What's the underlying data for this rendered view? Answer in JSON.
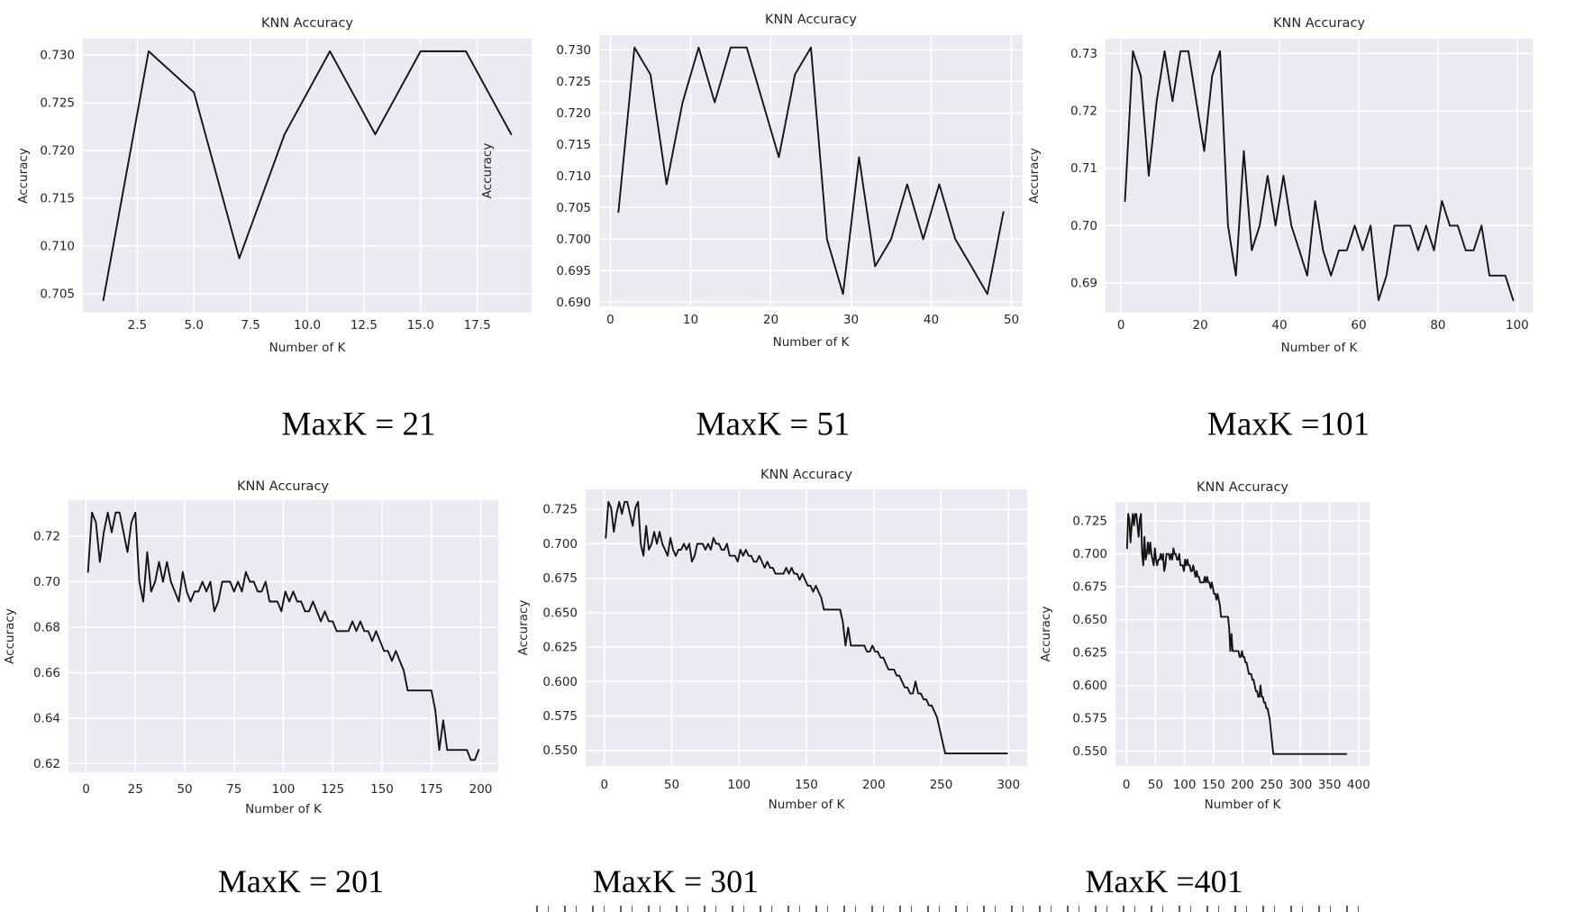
{
  "style": {
    "page_bg": "#ffffff",
    "plot_bg": "#eaeaf2",
    "grid_color": "#ffffff",
    "line_color": "#141414",
    "tick_color": "#262626",
    "title_color": "#262626",
    "caption_color": "#000000"
  },
  "chart_data": [
    {
      "type": "line",
      "title": "KNN Accuracy",
      "xlabel": "Number of K",
      "ylabel": "Accuracy",
      "caption": "MaxK = 21",
      "max_k": 21,
      "k_start": 1,
      "k_step": 2,
      "n_points": 10,
      "grid": true,
      "legend": "none",
      "xlim": [
        0.1,
        19.9
      ],
      "ylim": [
        0.703,
        0.73171
      ],
      "x_ticks": [
        2.5,
        5.0,
        7.5,
        10.0,
        12.5,
        15.0,
        17.5
      ],
      "x_tick_labels": [
        "2.5",
        "5.0",
        "7.5",
        "10.0",
        "12.5",
        "15.0",
        "17.5"
      ],
      "y_ticks": [
        0.705,
        0.71,
        0.715,
        0.72,
        0.725,
        0.73
      ],
      "y_tick_labels": [
        "0.705",
        "0.710",
        "0.715",
        "0.720",
        "0.725",
        "0.730"
      ],
      "values": [
        0.7043,
        0.7304,
        0.7261,
        0.7087,
        0.7217,
        0.7304,
        0.7217,
        0.7304,
        0.7304,
        0.7217
      ]
    },
    {
      "type": "line",
      "title": "KNN Accuracy",
      "xlabel": "Number of K",
      "ylabel": "Accuracy",
      "caption": "MaxK = 51",
      "max_k": 51,
      "k_start": 1,
      "k_step": 2,
      "n_points": 25,
      "grid": true,
      "legend": "none",
      "xlim": [
        -1.4,
        51.4
      ],
      "ylim": [
        0.68934,
        0.73236
      ],
      "x_ticks": [
        0,
        10,
        20,
        30,
        40,
        50
      ],
      "x_tick_labels": [
        "0",
        "10",
        "20",
        "30",
        "40",
        "50"
      ],
      "y_ticks": [
        0.69,
        0.695,
        0.7,
        0.705,
        0.71,
        0.715,
        0.72,
        0.725,
        0.73
      ],
      "y_tick_labels": [
        "0.690",
        "0.695",
        "0.700",
        "0.705",
        "0.710",
        "0.715",
        "0.720",
        "0.725",
        "0.730"
      ],
      "values": [
        0.7043,
        0.7304,
        0.7261,
        0.7087,
        0.7217,
        0.7304,
        0.7217,
        0.7304,
        0.7304,
        0.7217,
        0.713,
        0.7261,
        0.7304,
        0.7,
        0.6913,
        0.713,
        0.6957,
        0.7,
        0.7087,
        0.7,
        0.7087,
        0.7,
        0.6957,
        0.6913,
        0.7043
      ]
    },
    {
      "type": "line",
      "title": "KNN Accuracy",
      "xlabel": "Number of K",
      "ylabel": "Accuracy",
      "caption": "MaxK =101",
      "max_k": 101,
      "k_start": 1,
      "k_step": 2,
      "n_points": 50,
      "grid": true,
      "legend": "none",
      "xlim": [
        -3.9,
        103.9
      ],
      "ylim": [
        0.68483,
        0.73257
      ],
      "x_ticks": [
        0,
        20,
        40,
        60,
        80,
        100
      ],
      "x_tick_labels": [
        "0",
        "20",
        "40",
        "60",
        "80",
        "100"
      ],
      "y_ticks": [
        0.69,
        0.7,
        0.71,
        0.72,
        0.73
      ],
      "y_tick_labels": [
        "0.69",
        "0.70",
        "0.71",
        "0.72",
        "0.73"
      ],
      "values": [
        0.7043,
        0.7304,
        0.7261,
        0.7087,
        0.7217,
        0.7304,
        0.7217,
        0.7304,
        0.7304,
        0.7217,
        0.713,
        0.7261,
        0.7304,
        0.7,
        0.6913,
        0.713,
        0.6957,
        0.7,
        0.7087,
        0.7,
        0.7087,
        0.7,
        0.6957,
        0.6913,
        0.7043,
        0.6957,
        0.6913,
        0.6957,
        0.6957,
        0.7,
        0.6957,
        0.7,
        0.687,
        0.6913,
        0.7,
        0.7,
        0.7,
        0.6957,
        0.7,
        0.6957,
        0.7043,
        0.7,
        0.7,
        0.6957,
        0.6957,
        0.7,
        0.6913,
        0.6913,
        0.6913,
        0.687
      ]
    },
    {
      "type": "line",
      "title": "KNN Accuracy",
      "xlabel": "Number of K",
      "ylabel": "Accuracy",
      "caption": "MaxK = 201",
      "max_k": 201,
      "k_start": 1,
      "k_step": 2,
      "n_points": 100,
      "grid": true,
      "legend": "none",
      "xlim": [
        -8.9,
        208.9
      ],
      "ylim": [
        0.61626,
        0.73584
      ],
      "x_ticks": [
        0,
        25,
        50,
        75,
        100,
        125,
        150,
        175,
        200
      ],
      "x_tick_labels": [
        "0",
        "25",
        "50",
        "75",
        "100",
        "125",
        "150",
        "175",
        "200"
      ],
      "y_ticks": [
        0.62,
        0.64,
        0.66,
        0.68,
        0.7,
        0.72
      ],
      "y_tick_labels": [
        "0.62",
        "0.64",
        "0.66",
        "0.68",
        "0.70",
        "0.72"
      ],
      "values": [
        0.7043,
        0.7304,
        0.7261,
        0.7087,
        0.7217,
        0.7304,
        0.7217,
        0.7304,
        0.7304,
        0.7217,
        0.713,
        0.7261,
        0.7304,
        0.7,
        0.6913,
        0.713,
        0.6957,
        0.7,
        0.7087,
        0.7,
        0.7087,
        0.7,
        0.6957,
        0.6913,
        0.7043,
        0.6957,
        0.6913,
        0.6957,
        0.6957,
        0.7,
        0.6957,
        0.7,
        0.687,
        0.6913,
        0.7,
        0.7,
        0.7,
        0.6957,
        0.7,
        0.6957,
        0.7043,
        0.7,
        0.7,
        0.6957,
        0.6957,
        0.7,
        0.6913,
        0.6913,
        0.6913,
        0.687,
        0.6957,
        0.6913,
        0.6957,
        0.6913,
        0.6913,
        0.687,
        0.687,
        0.6913,
        0.687,
        0.6826,
        0.687,
        0.6826,
        0.6826,
        0.6783,
        0.6783,
        0.6783,
        0.6783,
        0.6826,
        0.6783,
        0.6826,
        0.6783,
        0.6783,
        0.6739,
        0.6783,
        0.6739,
        0.6696,
        0.6696,
        0.6652,
        0.6696,
        0.6652,
        0.6609,
        0.6522,
        0.6522,
        0.6522,
        0.6522,
        0.6522,
        0.6522,
        0.6522,
        0.6435,
        0.6261,
        0.6391,
        0.6261,
        0.6261,
        0.6261,
        0.6261,
        0.6261,
        0.6261,
        0.6217,
        0.6217,
        0.6261
      ]
    },
    {
      "type": "line",
      "title": "KNN Accuracy",
      "xlabel": "Number of K",
      "ylabel": "Accuracy",
      "caption": "MaxK = 301",
      "max_k": 301,
      "k_start": 1,
      "k_step": 2,
      "n_points": 150,
      "grid": true,
      "legend": "none",
      "xlim": [
        -13.9,
        313.9
      ],
      "ylim": [
        0.53867,
        0.73953
      ],
      "x_ticks": [
        0,
        50,
        100,
        150,
        200,
        250,
        300
      ],
      "x_tick_labels": [
        "0",
        "50",
        "100",
        "150",
        "200",
        "250",
        "300"
      ],
      "y_ticks": [
        0.55,
        0.575,
        0.6,
        0.625,
        0.65,
        0.675,
        0.7,
        0.725
      ],
      "y_tick_labels": [
        "0.550",
        "0.575",
        "0.600",
        "0.625",
        "0.650",
        "0.675",
        "0.700",
        "0.725"
      ],
      "values": [
        0.7043,
        0.7304,
        0.7261,
        0.7087,
        0.7217,
        0.7304,
        0.7217,
        0.7304,
        0.7304,
        0.7217,
        0.713,
        0.7261,
        0.7304,
        0.7,
        0.6913,
        0.713,
        0.6957,
        0.7,
        0.7087,
        0.7,
        0.7087,
        0.7,
        0.6957,
        0.6913,
        0.7043,
        0.6957,
        0.6913,
        0.6957,
        0.6957,
        0.7,
        0.6957,
        0.7,
        0.687,
        0.6913,
        0.7,
        0.7,
        0.7,
        0.6957,
        0.7,
        0.6957,
        0.7043,
        0.7,
        0.7,
        0.6957,
        0.6957,
        0.7,
        0.6913,
        0.6913,
        0.6913,
        0.687,
        0.6957,
        0.6913,
        0.6957,
        0.6913,
        0.6913,
        0.687,
        0.687,
        0.6913,
        0.687,
        0.6826,
        0.687,
        0.6826,
        0.6826,
        0.6783,
        0.6783,
        0.6783,
        0.6783,
        0.6826,
        0.6783,
        0.6826,
        0.6783,
        0.6783,
        0.6739,
        0.6783,
        0.6739,
        0.6696,
        0.6696,
        0.6652,
        0.6696,
        0.6652,
        0.6609,
        0.6522,
        0.6522,
        0.6522,
        0.6522,
        0.6522,
        0.6522,
        0.6522,
        0.6435,
        0.6261,
        0.6391,
        0.6261,
        0.6261,
        0.6261,
        0.6261,
        0.6261,
        0.6261,
        0.6217,
        0.6217,
        0.6261,
        0.6217,
        0.6217,
        0.6174,
        0.6174,
        0.613,
        0.6087,
        0.6087,
        0.6087,
        0.6043,
        0.6043,
        0.6,
        0.5957,
        0.5957,
        0.5913,
        0.5913,
        0.6,
        0.5913,
        0.5913,
        0.587,
        0.587,
        0.5826,
        0.5826,
        0.5783,
        0.5739,
        0.5652,
        0.5565,
        0.5478,
        0.5478,
        0.5478,
        0.5478,
        0.5478,
        0.5478,
        0.5478,
        0.5478,
        0.5478,
        0.5478,
        0.5478,
        0.5478,
        0.5478,
        0.5478,
        0.5478,
        0.5478,
        0.5478,
        0.5478,
        0.5478,
        0.5478,
        0.5478,
        0.5478,
        0.5478,
        0.5478
      ]
    },
    {
      "type": "line",
      "title": "KNN Accuracy",
      "xlabel": "Number of K",
      "ylabel": "Accuracy",
      "caption": "MaxK =401",
      "max_k": 401,
      "k_start": 1,
      "k_step": 2,
      "n_points": 200,
      "grid": true,
      "legend": "none",
      "xlim": [
        -18.9,
        418.9
      ],
      "ylim": [
        0.53867,
        0.73953
      ],
      "x_ticks": [
        0,
        50,
        100,
        150,
        200,
        250,
        300,
        350,
        400
      ],
      "x_tick_labels": [
        "0",
        "50",
        "100",
        "150",
        "200",
        "250",
        "300",
        "350",
        "400"
      ],
      "y_ticks": [
        0.55,
        0.575,
        0.6,
        0.625,
        0.65,
        0.675,
        0.7,
        0.725
      ],
      "y_tick_labels": [
        "0.550",
        "0.575",
        "0.600",
        "0.625",
        "0.650",
        "0.675",
        "0.700",
        "0.725"
      ],
      "values": [
        0.7043,
        0.7304,
        0.7261,
        0.7087,
        0.7217,
        0.7304,
        0.7217,
        0.7304,
        0.7304,
        0.7217,
        0.713,
        0.7261,
        0.7304,
        0.7,
        0.6913,
        0.713,
        0.6957,
        0.7,
        0.7087,
        0.7,
        0.7087,
        0.7,
        0.6957,
        0.6913,
        0.7043,
        0.6957,
        0.6913,
        0.6957,
        0.6957,
        0.7,
        0.6957,
        0.7,
        0.687,
        0.6913,
        0.7,
        0.7,
        0.7,
        0.6957,
        0.7,
        0.6957,
        0.7043,
        0.7,
        0.7,
        0.6957,
        0.6957,
        0.7,
        0.6913,
        0.6913,
        0.6913,
        0.687,
        0.6957,
        0.6913,
        0.6957,
        0.6913,
        0.6913,
        0.687,
        0.687,
        0.6913,
        0.687,
        0.6826,
        0.687,
        0.6826,
        0.6826,
        0.6783,
        0.6783,
        0.6783,
        0.6783,
        0.6826,
        0.6783,
        0.6826,
        0.6783,
        0.6783,
        0.6739,
        0.6783,
        0.6739,
        0.6696,
        0.6696,
        0.6652,
        0.6696,
        0.6652,
        0.6609,
        0.6522,
        0.6522,
        0.6522,
        0.6522,
        0.6522,
        0.6522,
        0.6522,
        0.6435,
        0.6261,
        0.6391,
        0.6261,
        0.6261,
        0.6261,
        0.6261,
        0.6261,
        0.6261,
        0.6217,
        0.6217,
        0.6261,
        0.6217,
        0.6217,
        0.6174,
        0.6174,
        0.613,
        0.6087,
        0.6087,
        0.6087,
        0.6043,
        0.6043,
        0.6,
        0.5957,
        0.5957,
        0.5913,
        0.5913,
        0.6,
        0.5913,
        0.5913,
        0.587,
        0.587,
        0.5826,
        0.5826,
        0.5783,
        0.5739,
        0.5652,
        0.5565,
        0.5478,
        0.5478,
        0.5478,
        0.5478,
        0.5478,
        0.5478,
        0.5478,
        0.5478,
        0.5478,
        0.5478,
        0.5478,
        0.5478,
        0.5478,
        0.5478,
        0.5478,
        0.5478,
        0.5478,
        0.5478,
        0.5478,
        0.5478,
        0.5478,
        0.5478,
        0.5478,
        0.5478,
        0.5478,
        0.5478,
        0.5478,
        0.5478,
        0.5478,
        0.5478,
        0.5478,
        0.5478,
        0.5478,
        0.5478,
        0.5478,
        0.5478,
        0.5478,
        0.5478,
        0.5478,
        0.5478,
        0.5478,
        0.5478,
        0.5478,
        0.5478,
        0.5478,
        0.5478,
        0.5478,
        0.5478,
        0.5478,
        0.5478,
        0.5478,
        0.5478,
        0.5478,
        0.5478,
        0.5478,
        0.5478,
        0.5478,
        0.5478,
        0.5478,
        0.5478,
        0.5478,
        0.5478,
        0.5478,
        0.5478
      ]
    }
  ]
}
